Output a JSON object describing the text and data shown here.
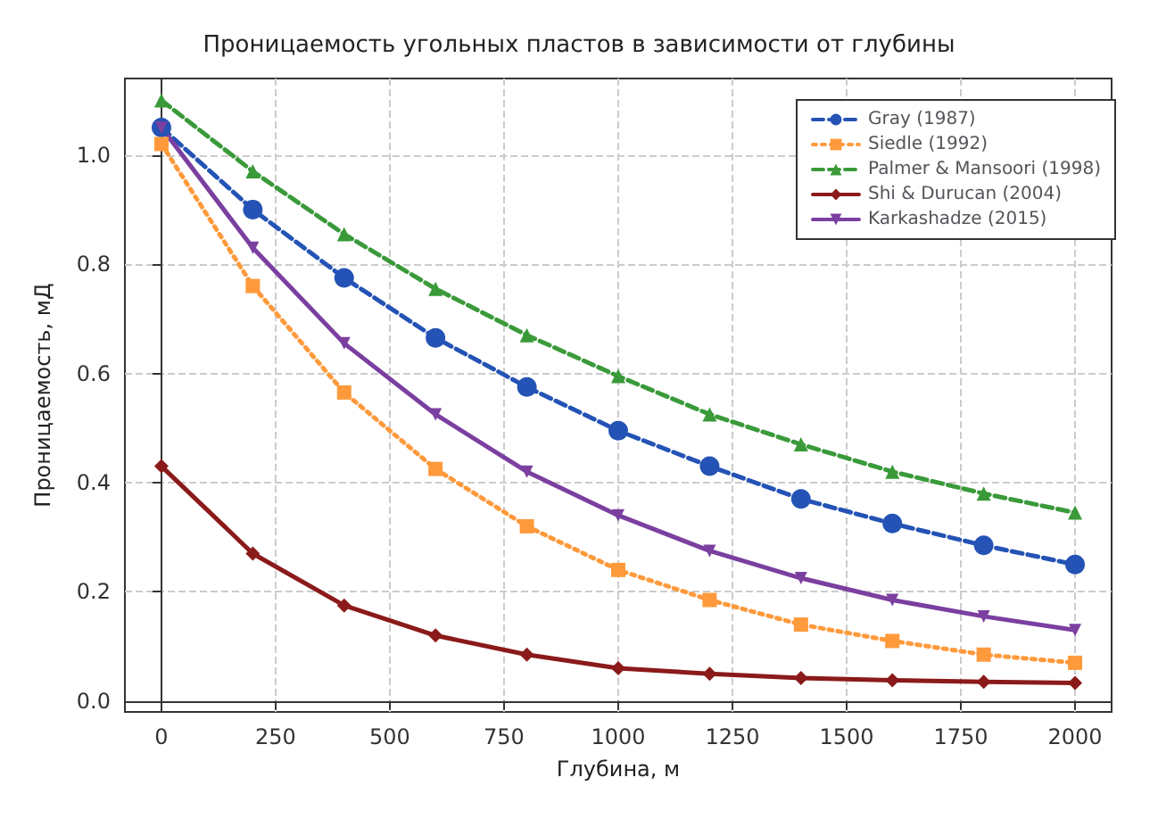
{
  "chart_data": {
    "type": "line",
    "title": "Проницаемость угольных пластов в зависимости от глубины",
    "xlabel": "Глубина, м",
    "ylabel": "Проницаемость, мД",
    "x": [
      0,
      200,
      400,
      600,
      800,
      1000,
      1200,
      1400,
      1600,
      1800,
      2000
    ],
    "series": [
      {
        "name": "Gray (1987)",
        "color": "#2453b5",
        "line_style": "dashed",
        "marker": "circle",
        "values": [
          1.05,
          0.9,
          0.775,
          0.665,
          0.575,
          0.495,
          0.43,
          0.37,
          0.325,
          0.285,
          0.25
        ]
      },
      {
        "name": "Siedle (1992)",
        "color": "#ff9a3c",
        "line_style": "dotted",
        "marker": "square",
        "values": [
          1.02,
          0.76,
          0.565,
          0.425,
          0.32,
          0.24,
          0.185,
          0.14,
          0.11,
          0.085,
          0.07
        ]
      },
      {
        "name": "Palmer & Mansoori (1998)",
        "color": "#3a9a3a",
        "line_style": "dashed",
        "marker": "triangle",
        "values": [
          1.1,
          0.97,
          0.855,
          0.755,
          0.67,
          0.595,
          0.525,
          0.47,
          0.42,
          0.38,
          0.345
        ]
      },
      {
        "name": "Shi & Durucan (2004)",
        "color": "#8b1a1a",
        "line_style": "solid",
        "marker": "diamond",
        "values": [
          0.43,
          0.27,
          0.175,
          0.12,
          0.085,
          0.06,
          0.05,
          0.042,
          0.038,
          0.035,
          0.033
        ]
      },
      {
        "name": "Karkashadze (2015)",
        "color": "#7b3fa0",
        "line_style": "solid",
        "marker": "triangle-down",
        "values": [
          1.05,
          0.83,
          0.655,
          0.525,
          0.42,
          0.34,
          0.275,
          0.225,
          0.185,
          0.155,
          0.13
        ]
      }
    ],
    "xlim": [
      -80,
      2080
    ],
    "xticks": [
      0,
      250,
      500,
      750,
      1000,
      1250,
      1500,
      1750,
      2000
    ],
    "ylim": [
      -0.02,
      1.14
    ],
    "yticks": [
      {
        "value": 0,
        "label": "0.0"
      },
      {
        "value": 0.2,
        "label": "0.2"
      },
      {
        "value": 0.4,
        "label": "0.4"
      },
      {
        "value": 0.6,
        "label": "0.6"
      },
      {
        "value": 0.8,
        "label": "0.8"
      },
      {
        "value": 1.0,
        "label": "1.0"
      }
    ],
    "grid": true,
    "legend": "top right"
  }
}
